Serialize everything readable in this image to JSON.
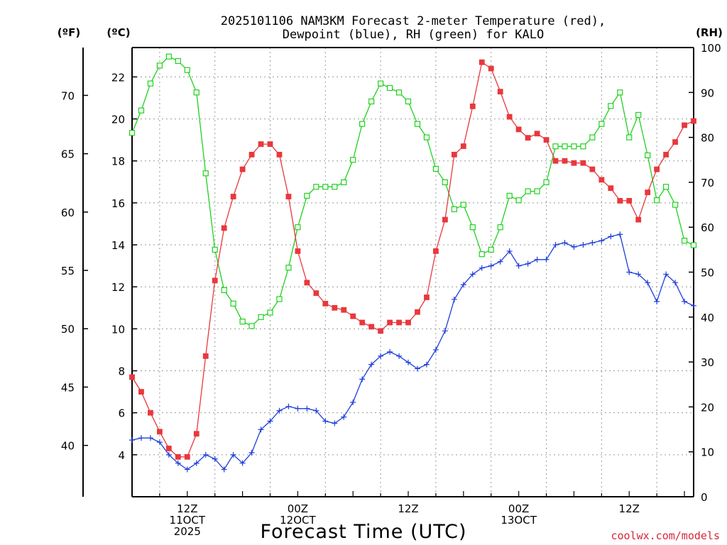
{
  "chart_data": {
    "type": "line",
    "title_line1": "2025101106 NAM3KM Forecast 2-meter Temperature (red),",
    "title_line2": "Dewpoint (blue), RH (green) for KALO",
    "xlabel": "Forecast Time (UTC)",
    "credit": "coolwx.com/models",
    "unit_f": "(ºF)",
    "unit_c": "(ºC)",
    "unit_rh": "(RH)",
    "hours": [
      6,
      7,
      8,
      9,
      10,
      11,
      12,
      13,
      14,
      15,
      16,
      17,
      18,
      19,
      20,
      21,
      22,
      23,
      24,
      25,
      26,
      27,
      28,
      29,
      30,
      31,
      32,
      33,
      34,
      35,
      36,
      37,
      38,
      39,
      40,
      41,
      42,
      43,
      44,
      45,
      46,
      47,
      48,
      49,
      50,
      51,
      52,
      53,
      54,
      55,
      56,
      57,
      58,
      59,
      60,
      61,
      62,
      63,
      64,
      65,
      66,
      67
    ],
    "ylim_c": [
      2,
      23.4
    ],
    "ylim_f": [
      35.6,
      74.1
    ],
    "ylim_rh": [
      0,
      100
    ],
    "c_ticks": [
      4,
      6,
      8,
      10,
      12,
      14,
      16,
      18,
      20,
      22
    ],
    "f_ticks": [
      40,
      45,
      50,
      55,
      60,
      65,
      70
    ],
    "rh_ticks": [
      0,
      10,
      20,
      30,
      40,
      50,
      60,
      70,
      80,
      90,
      100
    ],
    "x_ticks": [
      {
        "hour": 12,
        "lines": [
          "12Z",
          "11OCT",
          "2025"
        ]
      },
      {
        "hour": 24,
        "lines": [
          "00Z",
          "12OCT"
        ]
      },
      {
        "hour": 36,
        "lines": [
          "12Z"
        ]
      },
      {
        "hour": 48,
        "lines": [
          "00Z",
          "13OCT"
        ]
      },
      {
        "hour": 60,
        "lines": [
          "12Z"
        ]
      }
    ],
    "colors": {
      "temperature": "#e8383d",
      "dewpoint": "#1f3fd9",
      "rh": "#1fd11f",
      "grid": "#999999"
    },
    "series": [
      {
        "name": "Temperature",
        "unit": "C",
        "values": [
          7.7,
          7.0,
          6.0,
          5.1,
          4.3,
          3.9,
          3.9,
          5.0,
          8.7,
          12.3,
          14.8,
          16.3,
          17.6,
          18.3,
          18.8,
          18.8,
          18.3,
          16.3,
          13.7,
          12.2,
          11.7,
          11.2,
          11.0,
          10.9,
          10.6,
          10.3,
          10.1,
          9.9,
          10.3,
          10.3,
          10.3,
          10.8,
          11.5,
          13.7,
          15.2,
          18.3,
          18.7,
          20.6,
          22.7,
          22.4,
          21.3,
          20.1,
          19.5,
          19.1,
          19.3,
          19.0,
          18.0,
          18.0,
          17.9,
          17.9,
          17.6,
          17.1,
          16.7,
          16.1,
          16.1,
          15.2,
          16.5,
          17.6,
          18.3,
          18.9,
          19.7,
          19.9
        ]
      },
      {
        "name": "Dewpoint",
        "unit": "C",
        "values": [
          4.7,
          4.8,
          4.8,
          4.6,
          4.0,
          3.6,
          3.3,
          3.6,
          4.0,
          3.8,
          3.3,
          4.0,
          3.6,
          4.1,
          5.2,
          5.6,
          6.1,
          6.3,
          6.2,
          6.2,
          6.1,
          5.6,
          5.5,
          5.8,
          6.5,
          7.6,
          8.3,
          8.7,
          8.9,
          8.7,
          8.4,
          8.1,
          8.3,
          9.0,
          9.9,
          11.4,
          12.1,
          12.6,
          12.9,
          13.0,
          13.2,
          13.7,
          13.0,
          13.1,
          13.3,
          13.3,
          14.0,
          14.1,
          13.9,
          14.0,
          14.1,
          14.2,
          14.4,
          14.5,
          12.7,
          12.6,
          12.2,
          11.3,
          12.6,
          12.2,
          11.3,
          11.1
        ]
      },
      {
        "name": "RH",
        "unit": "%",
        "values": [
          81,
          86,
          92,
          96,
          98,
          97,
          95,
          90,
          72,
          55,
          46,
          43,
          39,
          38,
          40,
          41,
          44,
          51,
          60,
          67,
          69,
          69,
          69,
          70,
          75,
          83,
          88,
          92,
          91,
          90,
          88,
          83,
          80,
          73,
          70,
          64,
          65,
          60,
          54,
          55,
          60,
          67,
          66,
          68,
          68,
          70,
          78,
          78,
          78,
          78,
          80,
          83,
          87,
          90,
          80,
          85,
          76,
          66,
          69,
          65,
          57,
          56
        ]
      }
    ]
  }
}
